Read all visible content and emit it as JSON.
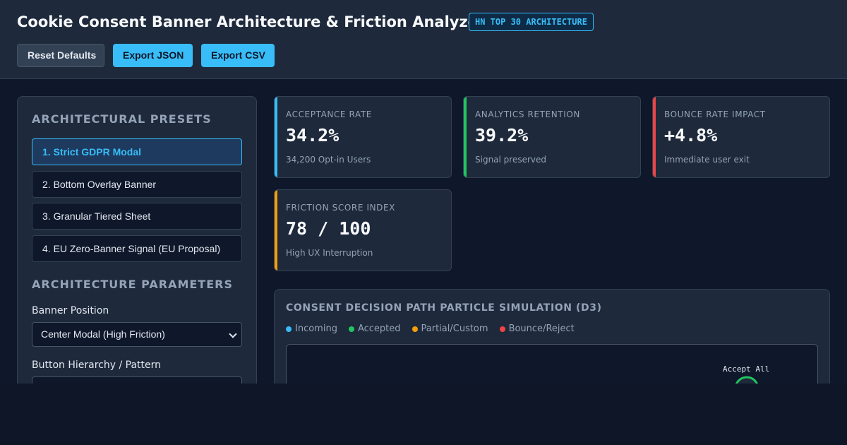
{
  "header": {
    "title": "Cookie Consent Banner Architecture & Friction Analyzer",
    "badge": "HN TOP 30 ARCHITECTURE",
    "buttons": {
      "reset": "Reset Defaults",
      "export_json": "Export JSON",
      "export_csv": "Export CSV"
    }
  },
  "sidebar": {
    "presets_heading": "ARCHITECTURAL PRESETS",
    "presets": [
      {
        "label": "1. Strict GDPR Modal",
        "active": true
      },
      {
        "label": "2. Bottom Overlay Banner",
        "active": false
      },
      {
        "label": "3. Granular Tiered Sheet",
        "active": false
      },
      {
        "label": "4. EU Zero-Banner Signal (EU Proposal)",
        "active": false
      }
    ],
    "params_heading": "ARCHITECTURE PARAMETERS",
    "banner_position": {
      "label": "Banner Position",
      "value": "Center Modal (High Friction)"
    },
    "button_hierarchy": {
      "label": "Button Hierarchy / Pattern",
      "value": ""
    }
  },
  "metrics": [
    {
      "label": "ACCEPTANCE RATE",
      "value": "34.2%",
      "sub": "34,200 Opt-in Users",
      "color": "#38bdf8"
    },
    {
      "label": "ANALYTICS RETENTION",
      "value": "39.2%",
      "sub": "Signal preserved",
      "color": "#22c55e"
    },
    {
      "label": "BOUNCE RATE IMPACT",
      "value": "+4.8%",
      "sub": "Immediate user exit",
      "color": "#ef4444"
    },
    {
      "label": "FRICTION SCORE INDEX",
      "value": "78 / 100",
      "sub": "High UX Interruption",
      "color": "#f59e0b"
    }
  ],
  "simulation": {
    "title": "CONSENT DECISION PATH PARTICLE SIMULATION (D3)",
    "legend": [
      {
        "label": "Incoming",
        "color": "#38bdf8"
      },
      {
        "label": "Accepted",
        "color": "#22c55e"
      },
      {
        "label": "Partial/Custom",
        "color": "#f59e0b"
      },
      {
        "label": "Bounce/Reject",
        "color": "#ef4444"
      }
    ],
    "node_label": "Accept All",
    "node_color": "#22c55e"
  }
}
